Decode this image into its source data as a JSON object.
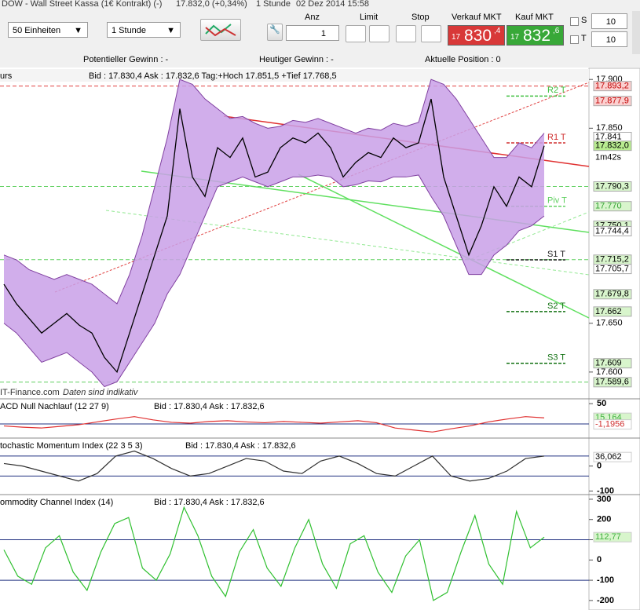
{
  "title_bar": {
    "instrument": "DOW - Wall Street Kassa (1€ Kontrakt) (-)",
    "quote": "17.832,0 (+0,34%)",
    "period": "1 Stunde",
    "datetime": "02 Dez 2014 15:58"
  },
  "toolbar": {
    "units": "50 Einheiten",
    "interval": "1 Stunde",
    "anz_label": "Anz",
    "anz_value": "1",
    "limit_label": "Limit",
    "stop_label": "Stop",
    "sell_label": "Verkauf MKT",
    "sell_small": "17",
    "sell_big": "830",
    "sell_dec": ",4",
    "buy_label": "Kauf MKT",
    "buy_small": "17",
    "buy_big": "832",
    "buy_dec": ",6",
    "s_label": "S",
    "s_value": "10",
    "t_label": "T",
    "t_value": "10"
  },
  "status": {
    "potential": "Potentieller Gewinn : -",
    "today": "Heutiger Gewinn : -",
    "position": "Aktuelle Position : 0"
  },
  "price_chart": {
    "header_name": "urs",
    "header_info": "Bid : 17.830,4 Ask : 17.832,6 Tag:+Hoch 17.851,5 +Tief 17.768,5",
    "watermark": "IT-Finance.com",
    "disclaimer": "Daten sind indikativ",
    "countdown": "1m42s",
    "ylim": [
      17583,
      17905
    ],
    "yticks": [
      {
        "value": 17900,
        "label": "17.900"
      },
      {
        "value": 17850,
        "label": "17.850"
      },
      {
        "value": 17650,
        "label": "17.650"
      },
      {
        "value": 17600,
        "label": "17.600"
      }
    ],
    "close": [
      17690,
      17670,
      17655,
      17640,
      17650,
      17660,
      17648,
      17640,
      17615,
      17600,
      17640,
      17680,
      17720,
      17760,
      17870,
      17800,
      17780,
      17830,
      17820,
      17840,
      17800,
      17805,
      17830,
      17840,
      17835,
      17845,
      17830,
      17800,
      17815,
      17825,
      17820,
      17840,
      17830,
      17835,
      17880,
      17800,
      17760,
      17720,
      17750,
      17790,
      17770,
      17800,
      17790,
      17832
    ],
    "upper": [
      17720,
      17715,
      17705,
      17700,
      17695,
      17700,
      17695,
      17690,
      17680,
      17670,
      17700,
      17740,
      17790,
      17840,
      17900,
      17895,
      17880,
      17870,
      17860,
      17862,
      17855,
      17850,
      17852,
      17858,
      17856,
      17860,
      17855,
      17850,
      17845,
      17850,
      17848,
      17855,
      17852,
      17856,
      17900,
      17895,
      17880,
      17860,
      17840,
      17820,
      17820,
      17835,
      17830,
      17845
    ],
    "lower": [
      17650,
      17640,
      17625,
      17610,
      17615,
      17620,
      17610,
      17600,
      17585,
      17590,
      17610,
      17630,
      17650,
      17680,
      17700,
      17730,
      17760,
      17790,
      17795,
      17800,
      17795,
      17790,
      17795,
      17800,
      17800,
      17802,
      17800,
      17790,
      17792,
      17796,
      17795,
      17800,
      17800,
      17802,
      17780,
      17760,
      17730,
      17700,
      17700,
      17720,
      17730,
      17745,
      17750,
      17760
    ],
    "price_labels": [
      {
        "value": 17893.2,
        "label": "17.893,2",
        "bg": "#fbd0d0",
        "fg": "#c00000",
        "line": "#e04040"
      },
      {
        "value": 17877.9,
        "label": "17.877,9",
        "bg": "#fbd0d0",
        "fg": "#c00000"
      },
      {
        "value": 17841,
        "label": "17.841",
        "bg": "#ffffff",
        "fg": "#000000"
      },
      {
        "value": 17832.0,
        "label": "17.832,0",
        "bg": "#b8ec90",
        "fg": "#000000"
      },
      {
        "value": 17790.3,
        "label": "17.790,3",
        "bg": "#d8f5cc",
        "fg": "#000000",
        "line": "#60d060"
      },
      {
        "value": 17770,
        "label": "17.770",
        "bg": "#d8f5cc",
        "fg": "#30a030"
      },
      {
        "value": 17750.1,
        "label": "17.750,1",
        "bg": "#d8f5cc",
        "fg": "#000000"
      },
      {
        "value": 17744.4,
        "label": "17.744,4",
        "bg": "#ffffff",
        "fg": "#000000"
      },
      {
        "value": 17715.2,
        "label": "17.715,2",
        "bg": "#d8f5cc",
        "fg": "#000000",
        "line": "#60d060"
      },
      {
        "value": 17705.7,
        "label": "17.705,7",
        "bg": "#ffffff",
        "fg": "#000000"
      },
      {
        "value": 17679.8,
        "label": "17.679,8",
        "bg": "#d8f5cc",
        "fg": "#000000"
      },
      {
        "value": 17662,
        "label": "17.662",
        "bg": "#d8f5cc",
        "fg": "#000000"
      },
      {
        "value": 17609,
        "label": "17.609",
        "bg": "#d8f5cc",
        "fg": "#000000"
      },
      {
        "value": 17589.6,
        "label": "17.589,6",
        "bg": "#d8f5cc",
        "fg": "#000000",
        "line": "#60d060"
      }
    ],
    "levels": [
      {
        "name": "R2 T",
        "value": 17883,
        "color": "#40c040"
      },
      {
        "name": "R1 T",
        "value": 17835,
        "color": "#d03030"
      },
      {
        "name": "Piv T",
        "value": 17770,
        "color": "#60d060"
      },
      {
        "name": "S1 T",
        "value": 17715,
        "color": "#202020"
      },
      {
        "name": "S2 T",
        "value": 17662,
        "color": "#107010"
      },
      {
        "name": "S3 T",
        "value": 17609,
        "color": "#107010"
      }
    ]
  },
  "indicators": [
    {
      "name": "ACD Null Nachlauf (12 27 9)",
      "info": "Bid : 17.830,4 Ask : 17.832,6",
      "ylim": [
        -31,
        62
      ],
      "yticks": [
        50
      ],
      "levels": [
        0
      ],
      "color": "#e03030",
      "values": [
        -5,
        -8,
        -10,
        -6,
        -2,
        5,
        12,
        18,
        10,
        4,
        2,
        6,
        8,
        5,
        3,
        6,
        4,
        2,
        5,
        8,
        3,
        -10,
        -15,
        -20,
        -12,
        -5,
        5,
        12,
        18,
        15
      ],
      "labels": [
        {
          "value": 15.164,
          "label": "15,164",
          "bg": "#d8f5cc",
          "fg": "#40b040"
        },
        {
          "value": -1.1956,
          "label": "-1,1956",
          "bg": "#ffffff",
          "fg": "#d03030"
        }
      ]
    },
    {
      "name": "tochastic Momentum Index (22 3 5 3)",
      "info": "Bid : 17.830,4 Ask : 17.832,6",
      "ylim": [
        -108,
        112
      ],
      "yticks": [
        0,
        -100
      ],
      "levels": [
        40,
        -40
      ],
      "color": "#303030",
      "values": [
        10,
        0,
        -20,
        -40,
        -60,
        -30,
        40,
        60,
        30,
        -10,
        -40,
        -30,
        0,
        30,
        20,
        -20,
        -30,
        20,
        40,
        10,
        -30,
        -40,
        0,
        40,
        -40,
        -60,
        -50,
        -20,
        30,
        40
      ],
      "labels": [
        {
          "value": 36.062,
          "label": "36,062",
          "bg": "#ffffff",
          "fg": "#000000"
        }
      ]
    },
    {
      "name": "ommodity Channel Index (14)",
      "info": "Bid : 17.830,4 Ask : 17.832,6",
      "ylim": [
        -247,
        323
      ],
      "yticks": [
        300,
        200,
        100,
        0,
        -100,
        -200
      ],
      "levels": [
        100,
        -100
      ],
      "color": "#30c030",
      "values": [
        50,
        -80,
        -120,
        60,
        120,
        -60,
        -150,
        40,
        180,
        210,
        -40,
        -100,
        30,
        260,
        120,
        -80,
        -180,
        40,
        150,
        -40,
        -130,
        60,
        200,
        -20,
        -140,
        80,
        120,
        -60,
        -160,
        20,
        100,
        -200,
        -160,
        40,
        220,
        -20,
        -120,
        240,
        60,
        112.77
      ],
      "labels": [
        {
          "value": 112.77,
          "label": "112,77",
          "bg": "#d8f5cc",
          "fg": "#40b040"
        }
      ]
    }
  ]
}
